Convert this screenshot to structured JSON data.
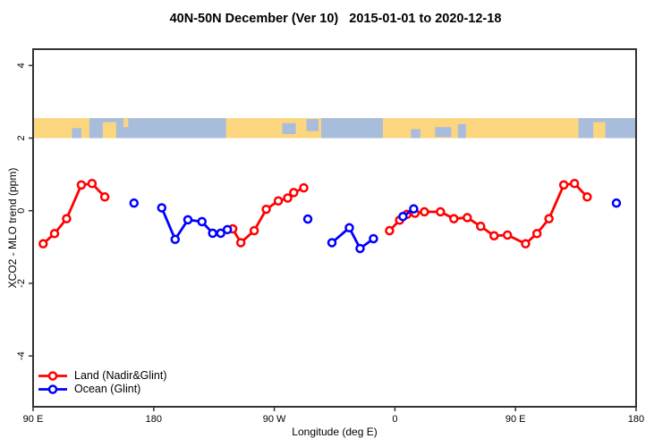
{
  "title": "40N-50N December (Ver 10)   2015-01-01 to 2020-12-18",
  "chart_data": {
    "type": "line",
    "title": "40N-50N December (Ver 10)   2015-01-01 to 2020-12-18",
    "xlabel": "Longitude (deg E)",
    "ylabel": "XCO2 - MLO trend (ppm)",
    "xlim": [
      90,
      540
    ],
    "ylim": [
      -5.4,
      4.45
    ],
    "grid": false,
    "frame_color": "#333333",
    "background": "#ffffff",
    "x_ticks": [
      {
        "value": 90,
        "label": "90 E"
      },
      {
        "value": 180,
        "label": "180"
      },
      {
        "value": 270,
        "label": "90 W"
      },
      {
        "value": 360,
        "label": "0"
      },
      {
        "value": 450,
        "label": "90 E"
      },
      {
        "value": 540,
        "label": "180"
      }
    ],
    "y_ticks": [
      {
        "value": 4,
        "label": "4"
      },
      {
        "value": 2,
        "label": "2"
      },
      {
        "value": 0,
        "label": "0"
      },
      {
        "value": -2,
        "label": "-2"
      },
      {
        "value": -4,
        "label": "-4"
      }
    ],
    "legend": [
      {
        "name": "Land (Nadir&Glint)",
        "color": "#ff0000"
      },
      {
        "name": "Ocean (Glint)",
        "color": "#0000ff"
      }
    ],
    "legend_position": "bottom-left",
    "marker": {
      "shape": "open-circle",
      "radius": 4,
      "fill": "#ffffff"
    },
    "series": [
      {
        "name": "Land (Nadir&Glint)",
        "color": "#ff0000",
        "segments": [
          [
            [
              97.5,
              -0.91
            ],
            [
              106,
              -0.63
            ],
            [
              115,
              -0.22
            ],
            [
              126,
              0.71
            ],
            [
              134,
              0.75
            ],
            [
              143.5,
              0.38
            ]
          ],
          [
            [
              239,
              -0.5
            ],
            [
              245,
              -0.88
            ],
            [
              255,
              -0.55
            ],
            [
              264,
              0.04
            ],
            [
              273,
              0.27
            ],
            [
              280,
              0.35
            ],
            [
              284.5,
              0.5
            ],
            [
              292,
              0.63
            ]
          ],
          [
            [
              356,
              -0.55
            ],
            [
              363.5,
              -0.26
            ],
            [
              369,
              -0.1
            ],
            [
              375,
              -0.07
            ],
            [
              382,
              -0.03
            ],
            [
              394,
              -0.03
            ],
            [
              404,
              -0.22
            ],
            [
              414,
              -0.19
            ],
            [
              424,
              -0.43
            ],
            [
              434,
              -0.69
            ],
            [
              444,
              -0.67
            ],
            [
              457.5,
              -0.91
            ],
            [
              466,
              -0.63
            ],
            [
              475,
              -0.22
            ],
            [
              486,
              0.71
            ],
            [
              494,
              0.75
            ],
            [
              503.5,
              0.38
            ]
          ]
        ]
      },
      {
        "name": "Ocean (Glint)",
        "color": "#0000ff",
        "segments": [
          [
            [
              165.3,
              0.21
            ]
          ],
          [
            [
              186,
              0.08
            ],
            [
              196,
              -0.79
            ],
            [
              205.5,
              -0.25
            ],
            [
              216,
              -0.3
            ],
            [
              224,
              -0.62
            ],
            [
              230,
              -0.62
            ],
            [
              235,
              -0.52
            ]
          ],
          [
            [
              295,
              -0.23
            ]
          ],
          [
            [
              313,
              -0.88
            ],
            [
              326,
              -0.47
            ],
            [
              334,
              -1.04
            ],
            [
              344,
              -0.77
            ]
          ],
          [
            [
              366,
              -0.16
            ],
            [
              374,
              0.05
            ]
          ],
          [
            [
              525.3,
              0.21
            ]
          ]
        ]
      }
    ],
    "map_strip": {
      "description": "world coastline band 40N-50N drawn across plot",
      "y_range": [
        2.0,
        2.55
      ],
      "land_color": "#FCD67E",
      "ocean_color": "#A8BCDC",
      "ocean_segments": [
        [
          132,
          234
        ],
        [
          305,
          351
        ],
        [
          497,
          540
        ]
      ],
      "islands": [
        [
          142,
          152,
          0.2,
          0.8
        ],
        [
          157.5,
          161,
          0.0,
          0.45
        ],
        [
          508,
          517,
          0.2,
          0.8
        ]
      ],
      "lakes": [
        [
          119,
          126,
          0.5,
          0.5
        ],
        [
          276,
          286,
          0.25,
          0.55
        ],
        [
          294,
          303,
          0.05,
          0.6
        ],
        [
          372,
          379,
          0.55,
          0.45
        ],
        [
          390,
          402,
          0.45,
          0.5
        ],
        [
          407,
          413,
          0.3,
          0.7
        ]
      ]
    }
  }
}
